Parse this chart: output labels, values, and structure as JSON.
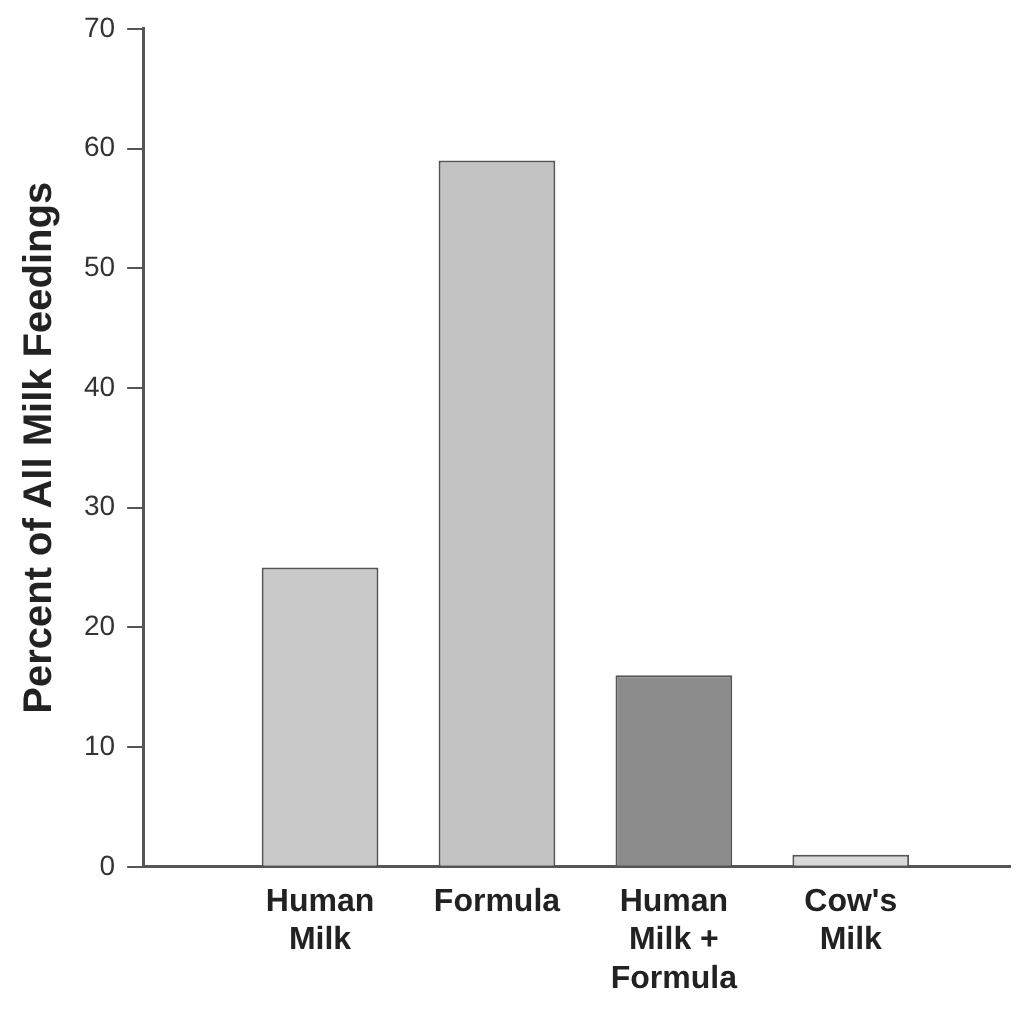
{
  "chart_data": {
    "type": "bar",
    "ylabel": "Percent of All Milk Feedings",
    "categories": [
      "Human Milk",
      "Formula",
      "Human Milk + Formula",
      "Cow's Milk"
    ],
    "values": [
      25,
      59,
      16,
      1
    ],
    "colors": [
      "#c9c9c9",
      "#c3c3c3",
      "#8c8c8c",
      "#d9d9d9"
    ],
    "ylim": [
      0,
      70
    ],
    "yticks": [
      0,
      10,
      20,
      30,
      40,
      50,
      60,
      70
    ],
    "grid": false,
    "legend": false
  }
}
